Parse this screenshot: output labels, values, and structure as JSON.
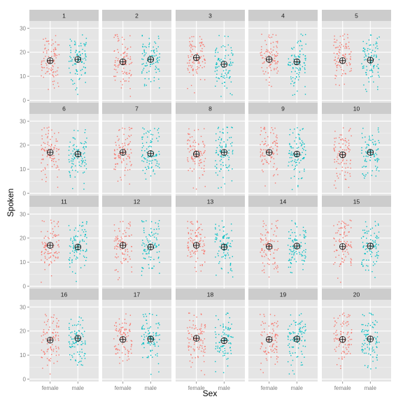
{
  "chart_data": {
    "type": "scatter",
    "description_style": "faceted jittered strip plot with per-group mean markers",
    "xlabel": "Sex",
    "ylabel": "Spoken",
    "x_categories": [
      "female",
      "male"
    ],
    "y_ticks": [
      0,
      10,
      20,
      30
    ],
    "ylim": [
      -1,
      33
    ],
    "grid": true,
    "facet_layout": {
      "rows": 4,
      "cols": 5
    },
    "colors": {
      "female": "#F8766D",
      "male": "#00BFC4",
      "panel_bg": "#E5E5E5",
      "strip_bg": "#CCCCCC",
      "grid": "#FFFFFF",
      "mean_marker": "#000000"
    },
    "mean_marker": "circle-plus",
    "panels": [
      {
        "label": "1",
        "means": {
          "female": 16.5,
          "male": 17.0
        }
      },
      {
        "label": "2",
        "means": {
          "female": 16.0,
          "male": 17.0
        }
      },
      {
        "label": "3",
        "means": {
          "female": 17.7,
          "male": 15.0
        }
      },
      {
        "label": "4",
        "means": {
          "female": 17.0,
          "male": 16.0
        }
      },
      {
        "label": "5",
        "means": {
          "female": 16.5,
          "male": 16.7
        }
      },
      {
        "label": "6",
        "means": {
          "female": 17.0,
          "male": 16.3
        }
      },
      {
        "label": "7",
        "means": {
          "female": 17.0,
          "male": 16.5
        }
      },
      {
        "label": "8",
        "means": {
          "female": 16.3,
          "male": 17.0
        }
      },
      {
        "label": "9",
        "means": {
          "female": 17.0,
          "male": 16.3
        }
      },
      {
        "label": "10",
        "means": {
          "female": 16.0,
          "male": 17.0
        }
      },
      {
        "label": "11",
        "means": {
          "female": 17.0,
          "male": 16.3
        }
      },
      {
        "label": "12",
        "means": {
          "female": 17.0,
          "male": 16.3
        }
      },
      {
        "label": "13",
        "means": {
          "female": 17.0,
          "male": 16.3
        }
      },
      {
        "label": "14",
        "means": {
          "female": 16.5,
          "male": 16.7
        }
      },
      {
        "label": "15",
        "means": {
          "female": 16.5,
          "male": 16.7
        }
      },
      {
        "label": "16",
        "means": {
          "female": 16.2,
          "male": 17.0
        }
      },
      {
        "label": "17",
        "means": {
          "female": 16.5,
          "male": 16.7
        }
      },
      {
        "label": "18",
        "means": {
          "female": 17.0,
          "male": 16.0
        }
      },
      {
        "label": "19",
        "means": {
          "female": 16.5,
          "male": 16.7
        }
      },
      {
        "label": "20",
        "means": {
          "female": 16.5,
          "male": 16.7
        }
      }
    ],
    "points_per_group": 90,
    "value_range": [
      2,
      27
    ]
  }
}
